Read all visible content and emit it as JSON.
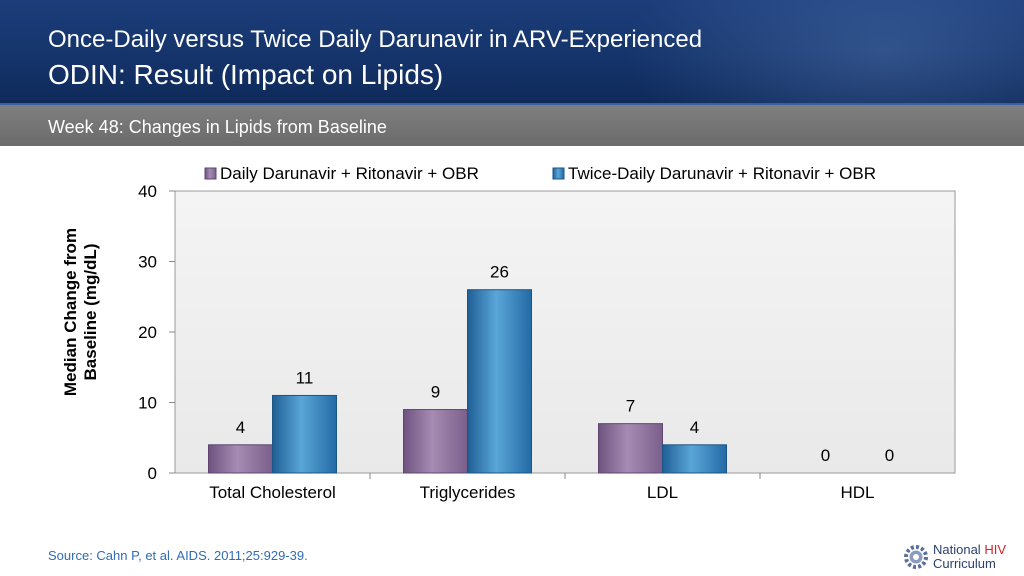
{
  "header": {
    "title_line1": "Once-Daily versus Twice Daily Darunavir in ARV-Experienced",
    "title_line2": "ODIN: Result (Impact on Lipids)",
    "subtitle": "Week 48: Changes in Lipids from Baseline"
  },
  "footer": {
    "source": "Source: Cahn P, et al. AIDS. 2011;25:929-39.",
    "logo_line1": "National",
    "logo_hiv": "HIV",
    "logo_line2": "Curriculum"
  },
  "chart_data": {
    "type": "bar",
    "title": "",
    "xlabel": "",
    "ylabel": "Median Change from Baseline (mg/dL)",
    "ylim": [
      0,
      40
    ],
    "yticks": [
      0,
      10,
      20,
      30,
      40
    ],
    "grid": false,
    "legend": "top",
    "categories": [
      "Total Cholesterol",
      "Triglycerides",
      "LDL",
      "HDL"
    ],
    "series": [
      {
        "name": "Daily Darunavir + Ritonavir + OBR",
        "values": [
          4,
          9,
          7,
          0
        ],
        "color": "#8e6f9c"
      },
      {
        "name": "Twice-Daily Darunavir + Ritonavir + OBR",
        "values": [
          11,
          26,
          4,
          0
        ],
        "color": "#2f7fb8"
      }
    ]
  }
}
